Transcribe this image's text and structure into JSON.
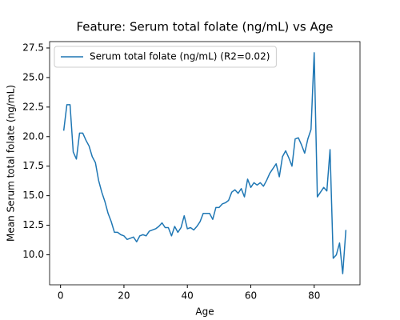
{
  "chart_data": {
    "type": "line",
    "title": "Feature: Serum total folate (ng/mL) vs Age",
    "x_label": "Age",
    "y_label": "Mean Serum total folate (ng/mL)",
    "x": [
      1,
      2,
      3,
      4,
      5,
      6,
      7,
      8,
      9,
      10,
      11,
      12,
      13,
      14,
      15,
      16,
      17,
      18,
      19,
      20,
      21,
      22,
      23,
      24,
      25,
      26,
      27,
      28,
      29,
      30,
      31,
      32,
      33,
      34,
      35,
      36,
      37,
      38,
      39,
      40,
      41,
      42,
      43,
      44,
      45,
      46,
      47,
      48,
      49,
      50,
      51,
      52,
      53,
      54,
      55,
      56,
      57,
      58,
      59,
      60,
      61,
      62,
      63,
      64,
      65,
      66,
      67,
      68,
      69,
      70,
      71,
      72,
      73,
      74,
      75,
      76,
      77,
      78,
      79,
      80,
      81,
      82,
      83,
      84,
      85,
      86,
      87,
      88,
      89,
      90
    ],
    "series": [
      {
        "name": "Serum total folate (ng/mL) (R2=0.02)",
        "color": "#1f77b4",
        "values": [
          20.5,
          22.7,
          22.7,
          18.7,
          18.1,
          20.3,
          20.3,
          19.7,
          19.2,
          18.3,
          17.8,
          16.3,
          15.3,
          14.5,
          13.5,
          12.8,
          11.9,
          11.9,
          11.7,
          11.6,
          11.3,
          11.4,
          11.5,
          11.1,
          11.6,
          11.7,
          11.6,
          12.0,
          12.1,
          12.2,
          12.4,
          12.7,
          12.3,
          12.3,
          11.6,
          12.4,
          11.9,
          12.3,
          13.3,
          12.2,
          12.3,
          12.1,
          12.4,
          12.8,
          13.5,
          13.5,
          13.5,
          13.0,
          14.0,
          14.0,
          14.3,
          14.4,
          14.6,
          15.3,
          15.5,
          15.2,
          15.6,
          14.9,
          16.4,
          15.7,
          16.1,
          15.9,
          16.1,
          15.8,
          16.3,
          16.9,
          17.3,
          17.7,
          16.6,
          18.3,
          18.8,
          18.2,
          17.5,
          19.8,
          19.9,
          19.3,
          18.6,
          19.8,
          20.6,
          27.1,
          14.9,
          15.3,
          15.7,
          15.4,
          18.9,
          9.7,
          10.0,
          11.0,
          8.4,
          12.1
        ]
      }
    ],
    "xlim": [
      -3.45,
      94.45
    ],
    "ylim": [
      7.46,
      28.04
    ],
    "xticks": [
      0,
      20,
      40,
      60,
      80
    ],
    "yticks": [
      {
        "value": 10,
        "label": "10.0"
      },
      {
        "value": 12.5,
        "label": "12.5"
      },
      {
        "value": 15,
        "label": "15.0"
      },
      {
        "value": 17.5,
        "label": "17.5"
      },
      {
        "value": 20,
        "label": "20.0"
      },
      {
        "value": 22.5,
        "label": "22.5"
      },
      {
        "value": 25,
        "label": "25.0"
      },
      {
        "value": 27.5,
        "label": "27.5"
      }
    ],
    "legend": "upper left",
    "grid": false
  }
}
